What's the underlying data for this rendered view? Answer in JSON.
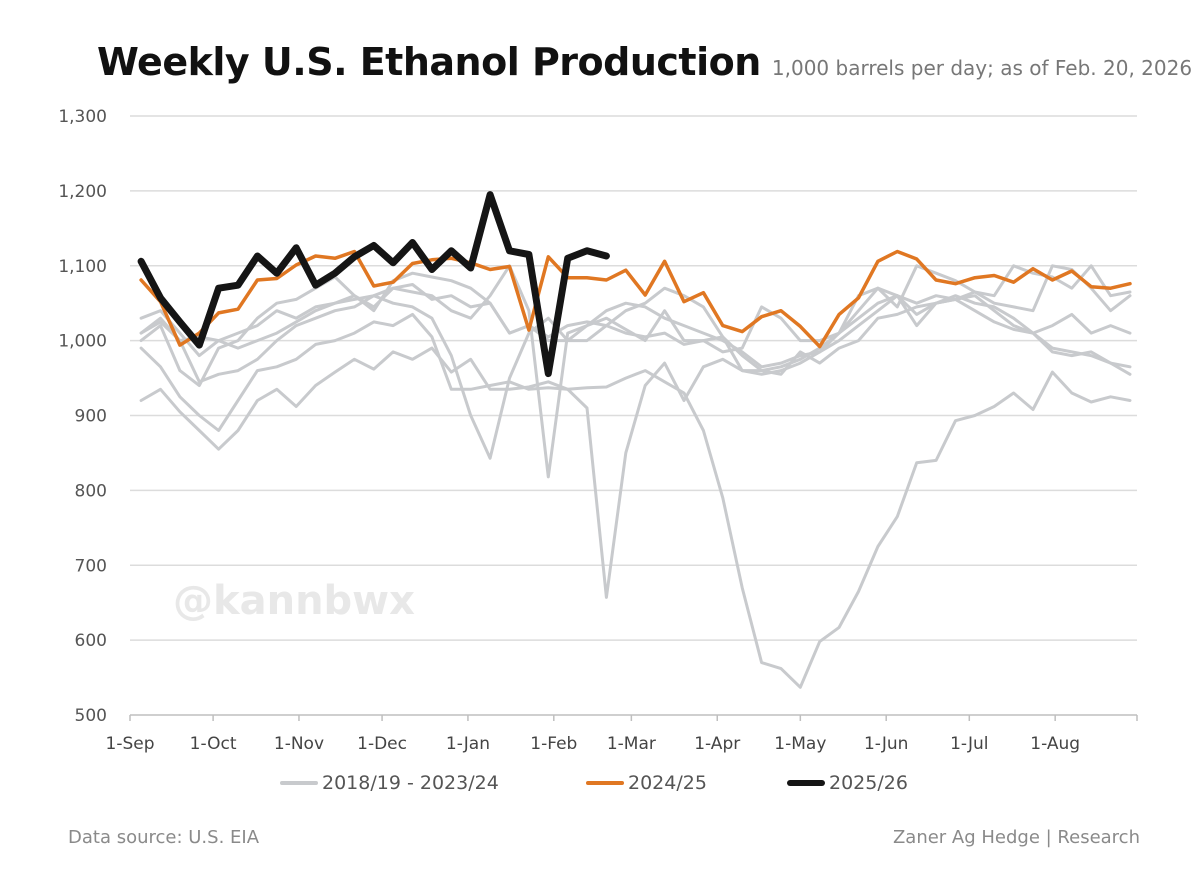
{
  "chart_data": {
    "type": "line",
    "title": "Weekly U.S. Ethanol Production",
    "subtitle": "1,000 barrels per day; as of Feb. 20, 2026",
    "xlabel": "",
    "ylabel": "",
    "ylim": [
      500,
      1300
    ],
    "yticks": [
      "500",
      "600",
      "700",
      "800",
      "900",
      "1,000",
      "1,100",
      "1,200",
      "1,300"
    ],
    "ytick_values": [
      500,
      600,
      700,
      800,
      900,
      1000,
      1100,
      1200,
      1300
    ],
    "xticks": [
      "1-Sep",
      "1-Oct",
      "1-Nov",
      "1-Dec",
      "1-Jan",
      "1-Feb",
      "1-Mar",
      "1-Apr",
      "1-May",
      "1-Jun",
      "1-Jul",
      "1-Aug"
    ],
    "grid": true,
    "legend_position": "bottom",
    "x": [
      "5-Sep",
      "12-Sep",
      "19-Sep",
      "26-Sep",
      "3-Oct",
      "10-Oct",
      "17-Oct",
      "24-Oct",
      "31-Oct",
      "7-Nov",
      "14-Nov",
      "21-Nov",
      "28-Nov",
      "5-Dec",
      "12-Dec",
      "19-Dec",
      "26-Dec",
      "2-Jan",
      "9-Jan",
      "16-Jan",
      "23-Jan",
      "30-Jan",
      "6-Feb",
      "13-Feb",
      "20-Feb",
      "27-Feb",
      "6-Mar",
      "13-Mar",
      "20-Mar",
      "27-Mar",
      "3-Apr",
      "10-Apr",
      "17-Apr",
      "24-Apr",
      "1-May",
      "8-May",
      "15-May",
      "22-May",
      "29-May",
      "5-Jun",
      "12-Jun",
      "19-Jun",
      "26-Jun",
      "3-Jul",
      "10-Jul",
      "17-Jul",
      "24-Jul",
      "31-Jul",
      "7-Aug",
      "14-Aug",
      "21-Aug",
      "28-Aug"
    ],
    "series_groups": [
      {
        "name": "2018/19 - 2023/24",
        "color": "#c8cacd",
        "series": [
          [
            920,
            935,
            905,
            880,
            855,
            880,
            920,
            935,
            912,
            940,
            958,
            975,
            962,
            985,
            975,
            990,
            958,
            975,
            935,
            935,
            938,
            945,
            935,
            937,
            938,
            950,
            960,
            945,
            930,
            880,
            790,
            670,
            570,
            562,
            537,
            598,
            617,
            665,
            725,
            765,
            837,
            840,
            893,
            900,
            912,
            930,
            908,
            958,
            930,
            918,
            925,
            920
          ],
          [
            990,
            965,
            925,
            900,
            880,
            920,
            960,
            965,
            975,
            995,
            1000,
            1010,
            1025,
            1020,
            1035,
            1005,
            935,
            935,
            940,
            945,
            935,
            937,
            935,
            910,
            657,
            850,
            940,
            970,
            920,
            965,
            975,
            960,
            960,
            955,
            985,
            970,
            990,
            1000,
            1030,
            1035,
            1045,
            1050,
            1055,
            1040,
            1025,
            1015,
            1010,
            985,
            980,
            985,
            970,
            955
          ],
          [
            1010,
            1030,
            1000,
            945,
            955,
            960,
            975,
            1000,
            1020,
            1030,
            1040,
            1045,
            1060,
            1050,
            1045,
            1030,
            980,
            900,
            843,
            950,
            1010,
            1030,
            1000,
            1000,
            1020,
            1010,
            1005,
            1010,
            995,
            1000,
            1005,
            980,
            960,
            965,
            975,
            990,
            1010,
            1030,
            1050,
            1060,
            1035,
            1050,
            1055,
            1060,
            1040,
            1020,
            1010,
            990,
            985,
            980,
            970,
            965
          ],
          [
            1030,
            1040,
            1010,
            980,
            1000,
            1010,
            1020,
            1040,
            1030,
            1045,
            1050,
            1055,
            1060,
            1070,
            1065,
            1060,
            1040,
            1030,
            1060,
            1100,
            1040,
            818,
            1010,
            1020,
            1040,
            1050,
            1045,
            1030,
            1020,
            1010,
            1000,
            985,
            965,
            970,
            980,
            985,
            1000,
            1020,
            1040,
            1060,
            1050,
            1060,
            1055,
            1065,
            1060,
            1100,
            1090,
            1085,
            1070,
            1100,
            1060,
            1065
          ],
          [
            1000,
            1020,
            960,
            940,
            990,
            1000,
            1030,
            1050,
            1055,
            1070,
            1085,
            1060,
            1040,
            1080,
            1090,
            1085,
            1080,
            1070,
            1050,
            1010,
            1020,
            1005,
            1020,
            1025,
            1020,
            1040,
            1050,
            1070,
            1060,
            1045,
            1005,
            960,
            955,
            960,
            970,
            985,
            1010,
            1040,
            1070,
            1060,
            1020,
            1050,
            1060,
            1050,
            1045,
            1030,
            1010,
            1020,
            1035,
            1010,
            1020,
            1010
          ],
          [
            1010,
            1025,
            1000,
            1005,
            1000,
            990,
            1000,
            1010,
            1025,
            1040,
            1050,
            1060,
            1045,
            1070,
            1075,
            1055,
            1060,
            1045,
            1050,
            1010,
            1020,
            1000,
            1000,
            1020,
            1030,
            1015,
            1000,
            1040,
            1000,
            1000,
            985,
            990,
            1045,
            1030,
            1000,
            1000,
            1010,
            1060,
            1070,
            1045,
            1100,
            1090,
            1080,
            1065,
            1050,
            1045,
            1040,
            1100,
            1095,
            1070,
            1040,
            1060
          ]
        ]
      },
      {
        "name": "2024/25",
        "color": "#e07722",
        "series": [
          [
            1081,
            1052,
            994,
            1010,
            1037,
            1042,
            1081,
            1083,
            1101,
            1113,
            1110,
            1119,
            1073,
            1078,
            1103,
            1108,
            1110,
            1104,
            1095,
            1099,
            1014,
            1112,
            1084,
            1084,
            1081,
            1094,
            1061,
            1106,
            1052,
            1064,
            1020,
            1012,
            1032,
            1040,
            1019,
            992,
            1035,
            1057,
            1106,
            1119,
            1109,
            1081,
            1076,
            1084,
            1087,
            1078,
            1096,
            1081,
            1093,
            1072,
            1070,
            1076
          ]
        ]
      },
      {
        "name": "2025/26",
        "color": "#151515",
        "series": [
          [
            1106,
            1057,
            1025,
            994,
            1070,
            1074,
            1113,
            1090,
            1124,
            1074,
            1090,
            1112,
            1127,
            1104,
            1131,
            1095,
            1120,
            1097,
            1195,
            1120,
            1115,
            956,
            1110,
            1120,
            1113
          ]
        ]
      }
    ]
  },
  "watermark": "@kannbwx",
  "footer": {
    "source": "Data source: U.S. EIA",
    "credit": "Zaner Ag Hedge | Research"
  }
}
